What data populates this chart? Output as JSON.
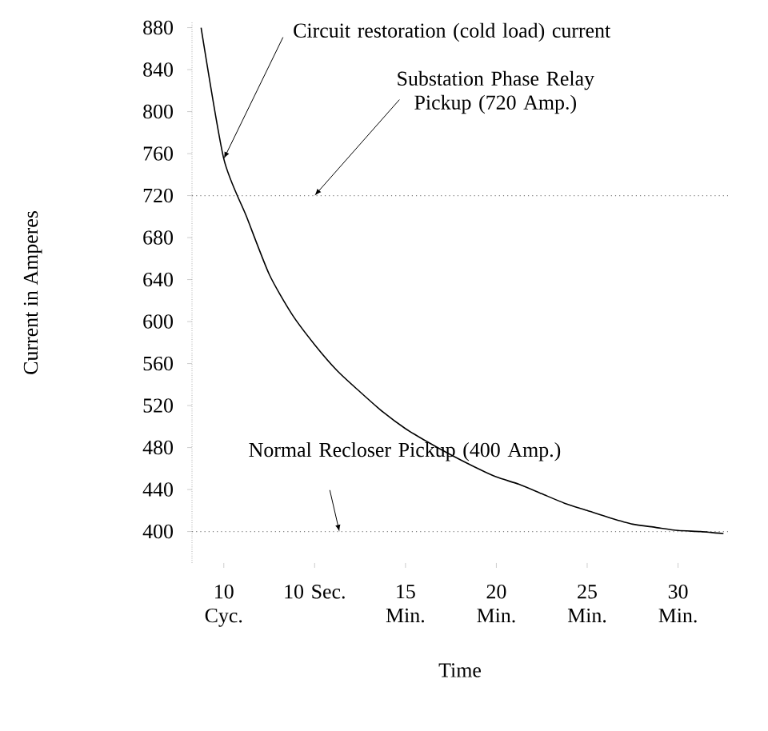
{
  "chart_data": {
    "type": "line",
    "xlabel": "Time",
    "ylabel": "Current in Amperes",
    "categories": [
      null,
      "10 Cyc.",
      null,
      null,
      null,
      "10 Sec.",
      null,
      null,
      null,
      "15 Min.",
      null,
      null,
      null,
      "20 Min.",
      null,
      null,
      null,
      "25 Min.",
      null,
      null,
      null,
      "30 Min.",
      null,
      null
    ],
    "series": [
      {
        "color": "#000000",
        "values": [
          880,
          755,
          700,
          645,
          607,
          578,
          553,
          533,
          514,
          498,
          485,
          473,
          462,
          452,
          445,
          436,
          427,
          420,
          413,
          407,
          404,
          401,
          400,
          398
        ]
      }
    ],
    "ylim": [
      370,
      885
    ],
    "yticks": [
      400,
      440,
      480,
      520,
      560,
      600,
      640,
      680,
      720,
      760,
      800,
      840,
      880
    ],
    "ref_lines": [
      {
        "axis": "y",
        "value": 720,
        "color": "#808080",
        "line_style": "dotted"
      },
      {
        "axis": "y",
        "value": 400,
        "color": "#808080",
        "line_style": "dotted"
      }
    ],
    "annotations": [
      {
        "text": "Circuit restoration (cold load) current",
        "x": "10 Cyc.",
        "y": 755
      },
      {
        "text": "Substation Phase Relay Pickup (720 Amp.)",
        "x": "10 Sec.",
        "y": 720
      },
      "Normal Recloser Pickup (400 Amp.)"
    ],
    "grid": false,
    "marker": "none",
    "line_style": "solid"
  }
}
